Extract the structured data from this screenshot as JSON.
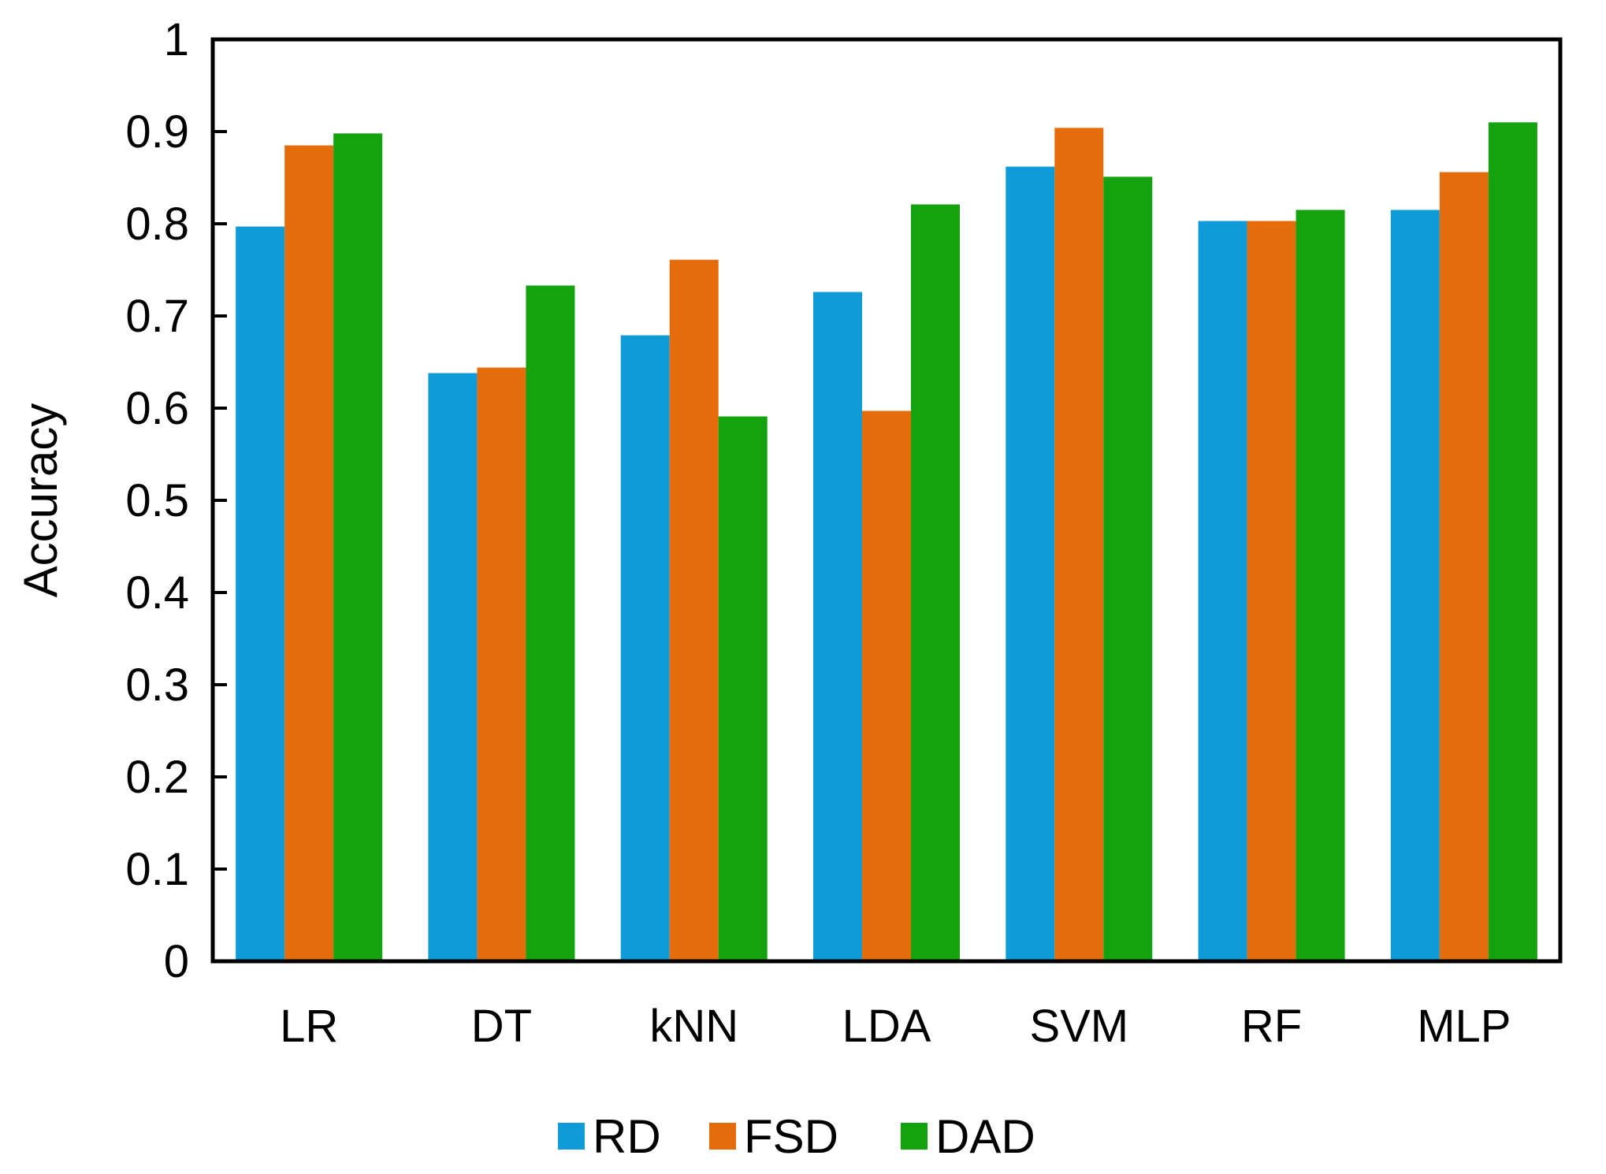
{
  "chart_data": {
    "type": "bar",
    "title": "",
    "xlabel": "",
    "ylabel": "Accuracy",
    "ylim": [
      0,
      1
    ],
    "yticks": [
      "0",
      "0.1",
      "0.2",
      "0.3",
      "0.4",
      "0.5",
      "0.6",
      "0.7",
      "0.8",
      "0.9",
      "1"
    ],
    "categories": [
      "LR",
      "DT",
      "kNN",
      "LDA",
      "SVM",
      "RF",
      "MLP"
    ],
    "series": [
      {
        "name": "RD",
        "color": "#0f9bd7",
        "values": [
          0.797,
          0.638,
          0.679,
          0.726,
          0.862,
          0.803,
          0.815
        ]
      },
      {
        "name": "FSD",
        "color": "#e46c0a",
        "values": [
          0.885,
          0.644,
          0.761,
          0.597,
          0.904,
          0.803,
          0.856
        ]
      },
      {
        "name": "DAD",
        "color": "#14a30f",
        "values": [
          0.898,
          0.733,
          0.591,
          0.821,
          0.851,
          0.815,
          0.91
        ]
      }
    ],
    "grid": false,
    "legend_position": "bottom-center"
  }
}
